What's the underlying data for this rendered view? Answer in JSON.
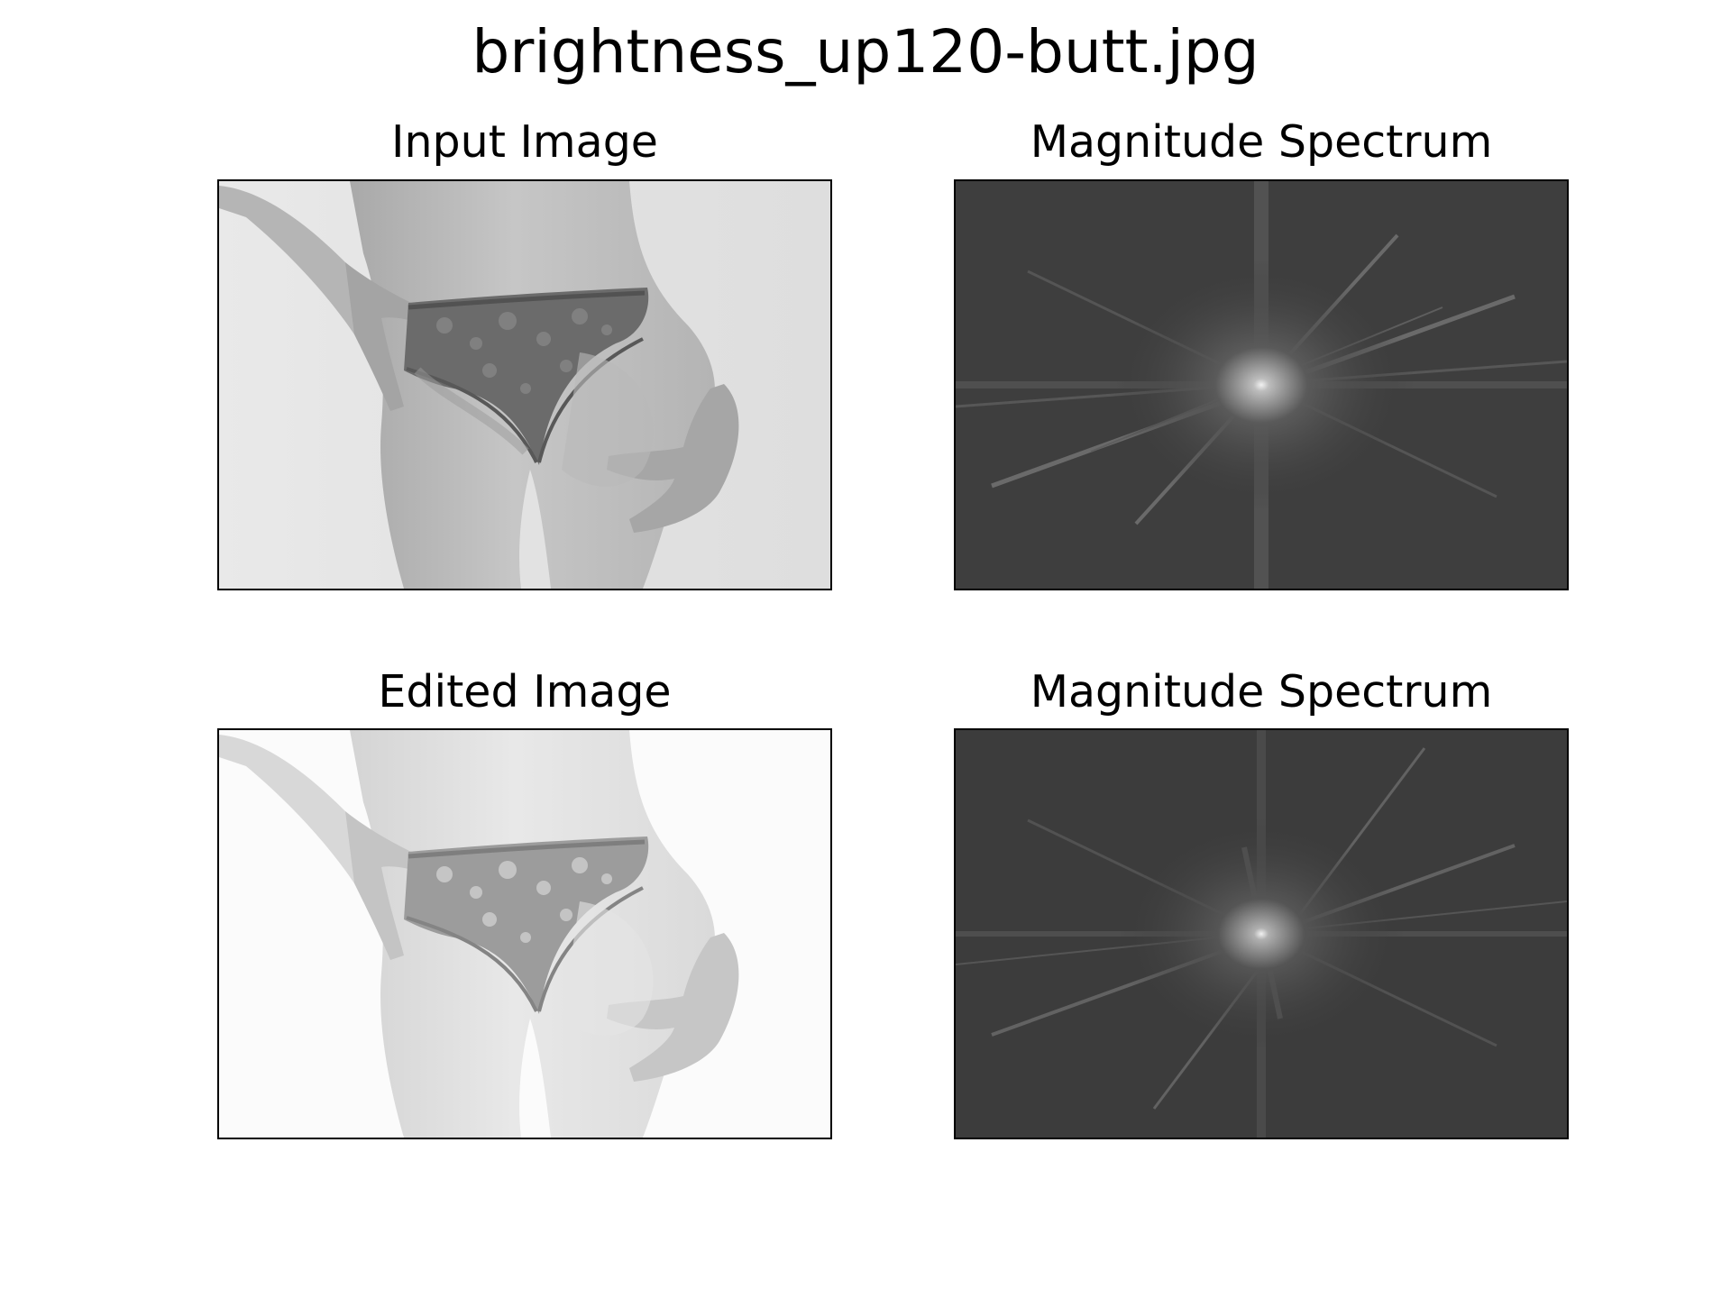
{
  "figure": {
    "title": "brightness_up120-butt.jpg"
  },
  "panels": [
    {
      "title": "Input Image"
    },
    {
      "title": "Magnitude Spectrum"
    },
    {
      "title": "Edited Image"
    },
    {
      "title": "Magnitude Spectrum"
    }
  ],
  "colors": {
    "background": "#ffffff",
    "frame": "#000000",
    "spectrum_dark": "#3a3a3a",
    "spectrum_center": "#f2f2f2",
    "input_background": "#e4e4e4",
    "edited_background": "#fbfbfb"
  }
}
